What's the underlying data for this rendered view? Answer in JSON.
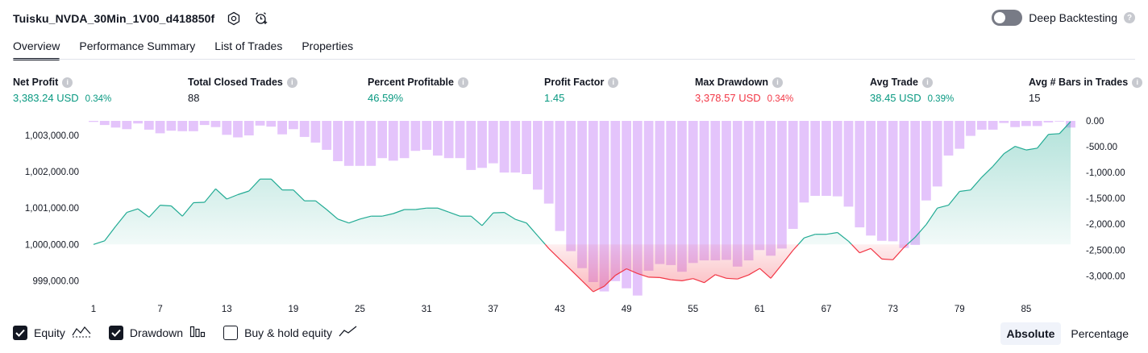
{
  "header": {
    "title": "Tuisku_NVDA_30Min_1V00_d418850f",
    "settings_icon": "gear-icon",
    "alert_icon": "add-alert-icon"
  },
  "deep_backtesting": {
    "label": "Deep Backtesting",
    "enabled": false
  },
  "tabs": [
    {
      "label": "Overview",
      "active": true
    },
    {
      "label": "Performance Summary",
      "active": false
    },
    {
      "label": "List of Trades",
      "active": false
    },
    {
      "label": "Properties",
      "active": false
    }
  ],
  "metrics": [
    {
      "label": "Net Profit",
      "value": "3,383.24 USD",
      "pct": "0.34%",
      "color": "#089981"
    },
    {
      "label": "Total Closed Trades",
      "value": "88",
      "pct": "",
      "color": "#131722"
    },
    {
      "label": "Percent Profitable",
      "value": "46.59%",
      "pct": "",
      "color": "#089981"
    },
    {
      "label": "Profit Factor",
      "value": "1.45",
      "pct": "",
      "color": "#089981"
    },
    {
      "label": "Max Drawdown",
      "value": "3,378.57 USD",
      "pct": "0.34%",
      "color": "#f23645"
    },
    {
      "label": "Avg Trade",
      "value": "38.45 USD",
      "pct": "0.39%",
      "color": "#089981"
    },
    {
      "label": "Avg # Bars in Trades",
      "value": "15",
      "pct": "",
      "color": "#131722"
    }
  ],
  "chart_data": {
    "type": "line",
    "x_ticks": [
      1,
      7,
      13,
      19,
      25,
      31,
      37,
      43,
      49,
      55,
      61,
      67,
      73,
      79,
      85
    ],
    "y_left": {
      "ticks": [
        "1,003,000.00",
        "1,002,000.00",
        "1,001,000.00",
        "1,000,000.00",
        "999,000.00"
      ],
      "values": [
        1003000,
        1002000,
        1001000,
        1000000,
        999000
      ],
      "range": [
        998300,
        1003400
      ]
    },
    "y_right": {
      "ticks": [
        "0.00",
        "-500.00",
        "-1,000.00",
        "-1,500.00",
        "-2,000.00",
        "-2,500.00",
        "-3,000.00"
      ],
      "values": [
        0,
        -500,
        -1000,
        -1500,
        -2000,
        -2500,
        -3000
      ],
      "range": [
        -3400,
        0
      ]
    },
    "baseline": 1000000,
    "series": [
      {
        "name": "Equity",
        "axis": "left",
        "x": [
          1,
          2,
          3,
          4,
          5,
          6,
          7,
          8,
          9,
          10,
          11,
          12,
          13,
          14,
          15,
          16,
          17,
          18,
          19,
          20,
          21,
          22,
          23,
          24,
          25,
          26,
          27,
          28,
          29,
          30,
          31,
          32,
          33,
          34,
          35,
          36,
          37,
          38,
          39,
          40,
          41,
          42,
          43,
          44,
          45,
          46,
          47,
          48,
          49,
          50,
          51,
          52,
          53,
          54,
          55,
          56,
          57,
          58,
          59,
          60,
          61,
          62,
          63,
          64,
          65,
          66,
          67,
          68,
          69,
          70,
          71,
          72,
          73,
          74,
          75,
          76,
          77,
          78,
          79,
          80,
          81,
          82,
          83,
          84,
          85,
          86,
          87,
          88,
          89
        ],
        "values": [
          1000000,
          1000100,
          1000500,
          1000880,
          1000980,
          1000750,
          1001080,
          1001060,
          1000780,
          1001150,
          1001160,
          1001530,
          1001250,
          1001370,
          1001470,
          1001800,
          1001800,
          1001500,
          1001500,
          1001200,
          1001200,
          1000960,
          1000700,
          1000590,
          1000700,
          1000780,
          1000780,
          1000850,
          1000960,
          1000960,
          1001000,
          1001000,
          1000890,
          1000780,
          1000780,
          1000520,
          1000870,
          1000880,
          1000690,
          1000590,
          1000240,
          999890,
          999590,
          999300,
          999000,
          998700,
          998850,
          999150,
          999330,
          999200,
          999100,
          999090,
          999030,
          999000,
          999060,
          998950,
          999170,
          999070,
          999050,
          999160,
          999340,
          999070,
          999450,
          999840,
          1000180,
          1000280,
          1000280,
          1000330,
          1000090,
          999770,
          999890,
          999600,
          999580,
          999920,
          1000200,
          1000550,
          1001000,
          1001080,
          1001460,
          1001500,
          1001850,
          1002150,
          1002500,
          1002700,
          1002600,
          1002650,
          1003030,
          1003050,
          1003383
        ]
      },
      {
        "name": "Drawdown",
        "axis": "right",
        "x": [
          1,
          2,
          3,
          4,
          5,
          6,
          7,
          8,
          9,
          10,
          11,
          12,
          13,
          14,
          15,
          16,
          17,
          18,
          19,
          20,
          21,
          22,
          23,
          24,
          25,
          26,
          27,
          28,
          29,
          30,
          31,
          32,
          33,
          34,
          35,
          36,
          37,
          38,
          39,
          40,
          41,
          42,
          43,
          44,
          45,
          46,
          47,
          48,
          49,
          50,
          51,
          52,
          53,
          54,
          55,
          56,
          57,
          58,
          59,
          60,
          61,
          62,
          63,
          64,
          65,
          66,
          67,
          68,
          69,
          70,
          71,
          72,
          73,
          74,
          75,
          76,
          77,
          78,
          79,
          80,
          81,
          82,
          83,
          84,
          85,
          86,
          87,
          88,
          89
        ],
        "values": [
          -20,
          -80,
          -130,
          -160,
          -50,
          -170,
          -240,
          -190,
          -200,
          -200,
          -80,
          -120,
          -270,
          -320,
          -280,
          -90,
          -110,
          -260,
          -160,
          -310,
          -420,
          -560,
          -780,
          -870,
          -870,
          -870,
          -720,
          -770,
          -720,
          -580,
          -560,
          -670,
          -720,
          -720,
          -950,
          -910,
          -820,
          -1000,
          -1000,
          -1030,
          -1330,
          -1600,
          -2130,
          -2520,
          -2850,
          -3120,
          -3300,
          -3100,
          -3240,
          -3380,
          -2900,
          -2770,
          -2790,
          -2920,
          -2750,
          -2700,
          -2700,
          -2690,
          -2820,
          -2700,
          -2500,
          -2610,
          -2470,
          -2090,
          -1580,
          -1450,
          -1450,
          -1460,
          -1660,
          -2060,
          -2220,
          -2320,
          -2330,
          -2460,
          -2400,
          -1540,
          -1270,
          -670,
          -540,
          -290,
          -170,
          -170,
          -40,
          -120,
          -100,
          -100,
          -30,
          0,
          -130
        ]
      }
    ]
  },
  "legend": [
    {
      "label": "Equity",
      "checked": true,
      "icon": "area-line-icon"
    },
    {
      "label": "Drawdown",
      "checked": true,
      "icon": "bars-icon"
    },
    {
      "label": "Buy & hold equity",
      "checked": false,
      "icon": "line-icon"
    }
  ],
  "mode": {
    "absolute": "Absolute",
    "percentage": "Percentage",
    "active": "absolute"
  }
}
